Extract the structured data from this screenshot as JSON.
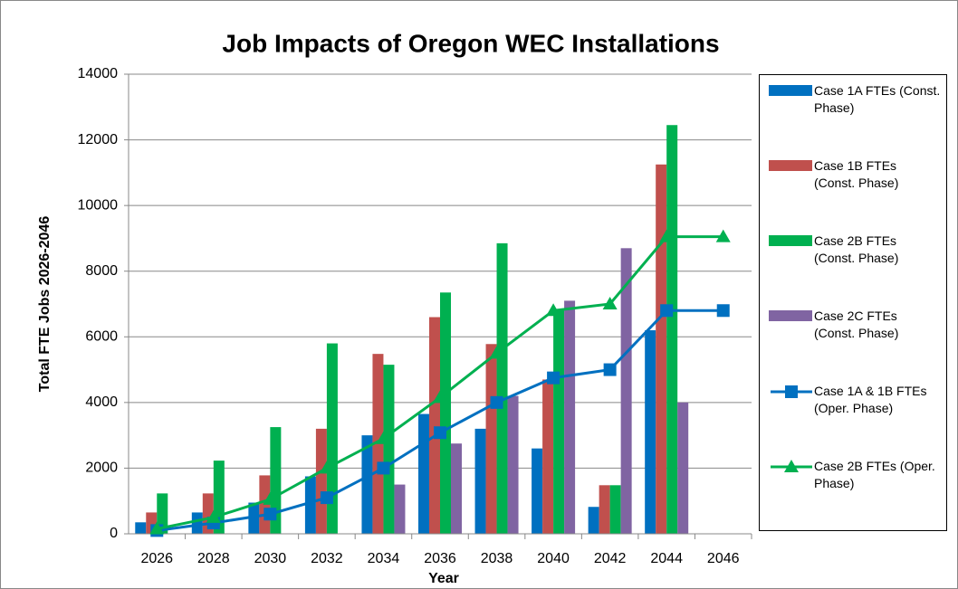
{
  "chart_data": {
    "type": "bar-line",
    "title": "Job Impacts of Oregon WEC Installations",
    "x_label": "Year",
    "y_label": "Total FTE Jobs 2026-2046",
    "categories": [
      "2026",
      "2028",
      "2030",
      "2032",
      "2034",
      "2036",
      "2038",
      "2040",
      "2042",
      "2044",
      "2046"
    ],
    "ylim": [
      0,
      14000
    ],
    "yticks": [
      0,
      2000,
      4000,
      6000,
      8000,
      10000,
      12000,
      14000
    ],
    "grid": true,
    "legend": "right",
    "series": [
      {
        "name": "Case 1A FTEs (Const. Phase)",
        "type": "bar",
        "color": "#0070c0",
        "values": [
          350,
          650,
          950,
          1750,
          3000,
          3650,
          3200,
          2600,
          820,
          6200,
          0
        ]
      },
      {
        "name": "Case 1B FTEs (Const. Phase)",
        "type": "bar",
        "color": "#c0504d",
        "values": [
          650,
          1230,
          1780,
          3200,
          5480,
          6600,
          5780,
          4700,
          1480,
          11250,
          0
        ]
      },
      {
        "name": "Case 2B FTEs (Const. Phase)",
        "type": "bar",
        "color": "#00b050",
        "values": [
          1230,
          2230,
          3250,
          5800,
          5150,
          7350,
          8850,
          6800,
          1480,
          12450,
          0
        ]
      },
      {
        "name": "Case 2C FTEs (Const. Phase)",
        "type": "bar",
        "color": "#8064a2",
        "values": [
          0,
          0,
          0,
          0,
          1500,
          2750,
          4200,
          7100,
          8700,
          4000,
          0
        ]
      },
      {
        "name": "Case 1A & 1B FTEs (Oper. Phase)",
        "type": "line",
        "marker": "square",
        "color": "#0070c0",
        "values": [
          100,
          330,
          600,
          1100,
          2000,
          3080,
          4000,
          4750,
          5000,
          6800,
          6800
        ]
      },
      {
        "name": "Case 2B FTEs (Oper. Phase)",
        "type": "line",
        "marker": "triangle",
        "color": "#00b050",
        "values": [
          150,
          500,
          1050,
          2000,
          2900,
          4150,
          5500,
          6800,
          7000,
          9050,
          9050
        ]
      }
    ]
  }
}
